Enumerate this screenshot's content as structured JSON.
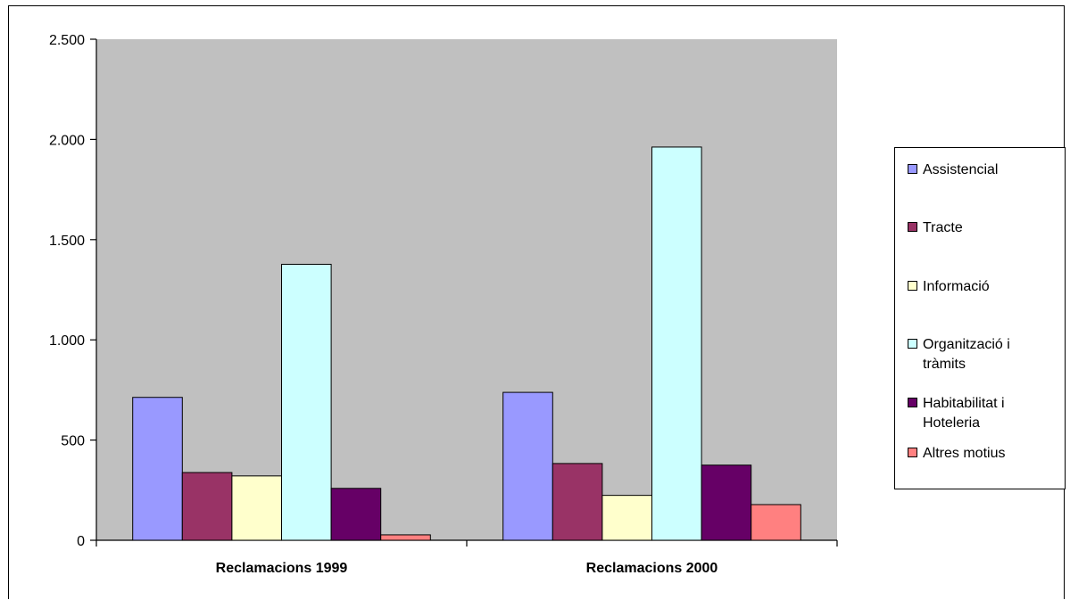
{
  "chart_data": {
    "type": "bar",
    "title": "",
    "xlabel": "",
    "ylabel": "",
    "categories": [
      "Reclamacions 1999",
      "Reclamacions 2000"
    ],
    "ylim": [
      0,
      2500
    ],
    "yticks": [
      0,
      500,
      1000,
      1500,
      2000,
      2500
    ],
    "ytick_labels": [
      "0",
      "500",
      "1.000",
      "1.500",
      "2.000",
      "2.500"
    ],
    "grid": false,
    "legend_position": "right",
    "plot_background": "#c0c0c0",
    "series": [
      {
        "name": "Assistencial",
        "color": "#9999ff",
        "values": [
          713,
          738
        ]
      },
      {
        "name": "Tracte",
        "color": "#993366",
        "values": [
          338,
          383
        ]
      },
      {
        "name": "Informació",
        "color": "#ffffcc",
        "values": [
          321,
          224
        ]
      },
      {
        "name": "Organització i tràmits",
        "color": "#ccffff",
        "values": [
          1377,
          1962
        ]
      },
      {
        "name": "Habitabilitat i Hoteleria",
        "color": "#660066",
        "values": [
          259,
          375
        ]
      },
      {
        "name": "Altres motius",
        "color": "#ff8080",
        "values": [
          27,
          178
        ]
      }
    ]
  }
}
